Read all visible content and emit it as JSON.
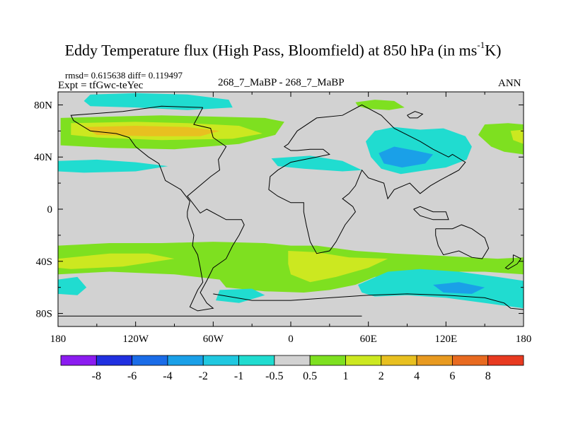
{
  "chart_data": {
    "type": "heatmap",
    "title_main": "Eddy Temperature flux (High Pass, Bloomfield) at 850 hPa (in ms",
    "title_sup": "-1",
    "title_end": "K)",
    "stats_line": "rmsd= 0.615638 diff= 0.119497",
    "expt_line": "Expt = tfGwc-teYec",
    "comparison": "268_7_MaBP - 268_7_MaBP",
    "season": "ANN",
    "x_domain": [
      -180,
      180
    ],
    "y_domain": [
      -90,
      90
    ],
    "x_ticks": [
      {
        "value": -180,
        "label": "180"
      },
      {
        "value": -120,
        "label": "120W"
      },
      {
        "value": -60,
        "label": "60W"
      },
      {
        "value": 0,
        "label": "0"
      },
      {
        "value": 60,
        "label": "60E"
      },
      {
        "value": 120,
        "label": "120E"
      },
      {
        "value": 180,
        "label": "180"
      }
    ],
    "y_ticks": [
      {
        "value": 80,
        "label": "80N"
      },
      {
        "value": 40,
        "label": "40N"
      },
      {
        "value": 0,
        "label": "0"
      },
      {
        "value": -40,
        "label": "40S"
      },
      {
        "value": -80,
        "label": "80S"
      }
    ],
    "colorbar": {
      "labels": [
        "-8",
        "-6",
        "-4",
        "-2",
        "-1",
        "-0.5",
        "0.5",
        "1",
        "2",
        "4",
        "6",
        "8"
      ],
      "colors": [
        "#8b1cf0",
        "#2030e0",
        "#1a6ce8",
        "#1aa0e8",
        "#20c8e0",
        "#20dcd0",
        "#d2d2d2",
        "#7ee020",
        "#cce820",
        "#e8c020",
        "#e89a20",
        "#e86a20",
        "#e83a20"
      ]
    },
    "regions": [
      {
        "level": "-1",
        "color": "#20dcd0",
        "points": [
          [
            -155,
            88
          ],
          [
            -120,
            89
          ],
          [
            -80,
            88
          ],
          [
            -48,
            84
          ],
          [
            -45,
            78
          ],
          [
            -80,
            76
          ],
          [
            -120,
            78
          ],
          [
            -155,
            79
          ],
          [
            -160,
            83
          ]
        ]
      },
      {
        "level": "1",
        "color": "#7ee020",
        "points": [
          [
            -178,
            70
          ],
          [
            -140,
            71
          ],
          [
            -100,
            72
          ],
          [
            -60,
            71
          ],
          [
            -20,
            70
          ],
          [
            -5,
            67
          ],
          [
            -12,
            57
          ],
          [
            -40,
            50
          ],
          [
            -90,
            46
          ],
          [
            -140,
            47
          ],
          [
            -178,
            49
          ]
        ]
      },
      {
        "level": "2",
        "color": "#cce820",
        "points": [
          [
            -170,
            66
          ],
          [
            -120,
            67
          ],
          [
            -80,
            66
          ],
          [
            -40,
            64
          ],
          [
            -22,
            58
          ],
          [
            -45,
            54
          ],
          [
            -100,
            53
          ],
          [
            -150,
            55
          ],
          [
            -170,
            57
          ]
        ]
      },
      {
        "level": "4",
        "color": "#e8c020",
        "points": [
          [
            -160,
            63
          ],
          [
            -120,
            64
          ],
          [
            -80,
            63
          ],
          [
            -55,
            60
          ],
          [
            -70,
            56
          ],
          [
            -110,
            56
          ],
          [
            -150,
            57
          ]
        ]
      },
      {
        "level": "-1",
        "color": "#20dcd0",
        "points": [
          [
            -180,
            37
          ],
          [
            -150,
            38
          ],
          [
            -120,
            36
          ],
          [
            -95,
            33
          ],
          [
            -120,
            29
          ],
          [
            -160,
            28
          ],
          [
            -180,
            29
          ]
        ]
      },
      {
        "level": "-1",
        "color": "#20dcd0",
        "points": [
          [
            -15,
            39
          ],
          [
            15,
            41
          ],
          [
            40,
            37
          ],
          [
            55,
            30
          ],
          [
            40,
            29
          ],
          [
            10,
            31
          ],
          [
            -10,
            33
          ]
        ]
      },
      {
        "level": "1",
        "color": "#7ee020",
        "points": [
          [
            50,
            82
          ],
          [
            65,
            84
          ],
          [
            80,
            83
          ],
          [
            88,
            78
          ],
          [
            76,
            76
          ],
          [
            60,
            77
          ],
          [
            52,
            79
          ]
        ]
      },
      {
        "level": "-1",
        "color": "#20dcd0",
        "points": [
          [
            65,
            60
          ],
          [
            80,
            63
          ],
          [
            100,
            61
          ],
          [
            118,
            62
          ],
          [
            135,
            56
          ],
          [
            140,
            48
          ],
          [
            136,
            38
          ],
          [
            120,
            32
          ],
          [
            105,
            30
          ],
          [
            85,
            27
          ],
          [
            70,
            31
          ],
          [
            62,
            40
          ],
          [
            58,
            52
          ]
        ]
      },
      {
        "level": "-2",
        "color": "#1aa0e8",
        "points": [
          [
            68,
            43
          ],
          [
            80,
            48
          ],
          [
            96,
            45
          ],
          [
            110,
            42
          ],
          [
            104,
            35
          ],
          [
            86,
            32
          ],
          [
            72,
            35
          ]
        ]
      },
      {
        "level": "1",
        "color": "#7ee020",
        "points": [
          [
            150,
            65
          ],
          [
            168,
            66
          ],
          [
            180,
            65
          ],
          [
            180,
            42
          ],
          [
            165,
            44
          ],
          [
            155,
            48
          ],
          [
            145,
            57
          ]
        ]
      },
      {
        "level": "2",
        "color": "#cce820",
        "points": [
          [
            170,
            60
          ],
          [
            180,
            61
          ],
          [
            180,
            50
          ],
          [
            172,
            53
          ]
        ]
      },
      {
        "level": "1",
        "color": "#7ee020",
        "points": [
          [
            -180,
            -28
          ],
          [
            -140,
            -26
          ],
          [
            -100,
            -26
          ],
          [
            -60,
            -25
          ],
          [
            -20,
            -26
          ],
          [
            0,
            -28
          ],
          [
            20,
            -28
          ],
          [
            50,
            -32
          ],
          [
            80,
            -34
          ],
          [
            120,
            -36
          ],
          [
            160,
            -38
          ],
          [
            180,
            -37
          ],
          [
            180,
            -50
          ],
          [
            150,
            -48
          ],
          [
            120,
            -48
          ],
          [
            90,
            -50
          ],
          [
            65,
            -52
          ],
          [
            50,
            -58
          ],
          [
            30,
            -62
          ],
          [
            10,
            -64
          ],
          [
            -20,
            -63
          ],
          [
            -50,
            -60
          ],
          [
            -55,
            -54
          ],
          [
            -90,
            -50
          ],
          [
            -140,
            -48
          ],
          [
            -180,
            -50
          ]
        ]
      },
      {
        "level": "2",
        "color": "#cce820",
        "points": [
          [
            -180,
            -38
          ],
          [
            -140,
            -34
          ],
          [
            -110,
            -34
          ],
          [
            -90,
            -38
          ],
          [
            -130,
            -44
          ],
          [
            -170,
            -46
          ],
          [
            -180,
            -45
          ]
        ]
      },
      {
        "level": "2",
        "color": "#cce820",
        "points": [
          [
            -2,
            -32
          ],
          [
            20,
            -33
          ],
          [
            45,
            -37
          ],
          [
            75,
            -38
          ],
          [
            60,
            -45
          ],
          [
            35,
            -52
          ],
          [
            15,
            -56
          ],
          [
            0,
            -50
          ],
          [
            -2,
            -42
          ]
        ]
      },
      {
        "level": "-1",
        "color": "#20dcd0",
        "points": [
          [
            -180,
            -54
          ],
          [
            -165,
            -52
          ],
          [
            -158,
            -60
          ],
          [
            -165,
            -66
          ],
          [
            -180,
            -65
          ]
        ]
      },
      {
        "level": "-1",
        "color": "#20dcd0",
        "points": [
          [
            -55,
            -62
          ],
          [
            -30,
            -61
          ],
          [
            -20,
            -66
          ],
          [
            -40,
            -72
          ],
          [
            -58,
            -70
          ]
        ]
      },
      {
        "level": "-1",
        "color": "#20dcd0",
        "points": [
          [
            52,
            -58
          ],
          [
            75,
            -48
          ],
          [
            100,
            -46
          ],
          [
            130,
            -48
          ],
          [
            160,
            -52
          ],
          [
            180,
            -55
          ],
          [
            180,
            -76
          ],
          [
            150,
            -72
          ],
          [
            120,
            -68
          ],
          [
            90,
            -66
          ],
          [
            65,
            -67
          ],
          [
            55,
            -64
          ]
        ]
      },
      {
        "level": "-2",
        "color": "#1aa0e8",
        "points": [
          [
            110,
            -58
          ],
          [
            130,
            -56
          ],
          [
            150,
            -60
          ],
          [
            140,
            -65
          ],
          [
            118,
            -64
          ]
        ]
      }
    ],
    "coastlines": [
      [
        [
          -68,
          78
        ],
        [
          -75,
          65
        ],
        [
          -62,
          62
        ],
        [
          -60,
          55
        ],
        [
          -50,
          48
        ],
        [
          -56,
          38
        ],
        [
          -55,
          30
        ],
        [
          -62,
          25
        ],
        [
          -80,
          10
        ],
        [
          -70,
          -3
        ],
        [
          -65,
          0
        ],
        [
          -50,
          -8
        ],
        [
          -38,
          -8
        ],
        [
          -36,
          -12
        ],
        [
          -40,
          -20
        ],
        [
          -45,
          -28
        ],
        [
          -50,
          -38
        ],
        [
          -60,
          -45
        ],
        [
          -65,
          -55
        ],
        [
          -70,
          -64
        ],
        [
          -65,
          -72
        ],
        [
          -60,
          -76
        ],
        [
          -72,
          -78
        ],
        [
          -78,
          -75
        ],
        [
          -72,
          -62
        ],
        [
          -68,
          -56
        ],
        [
          -70,
          -45
        ],
        [
          -72,
          -35
        ],
        [
          -76,
          -28
        ],
        [
          -75,
          -20
        ],
        [
          -80,
          -6
        ],
        [
          -80,
          -2
        ],
        [
          -78,
          6
        ],
        [
          -85,
          15
        ],
        [
          -97,
          22
        ],
        [
          -100,
          30
        ],
        [
          -102,
          35
        ],
        [
          -110,
          40
        ],
        [
          -120,
          48
        ],
        [
          -125,
          55
        ],
        [
          -135,
          58
        ],
        [
          -155,
          60
        ],
        [
          -168,
          68
        ],
        [
          -170,
          72
        ],
        [
          -130,
          75
        ],
        [
          -100,
          79
        ],
        [
          -68,
          78
        ]
      ],
      [
        [
          -2,
          50
        ],
        [
          5,
          60
        ],
        [
          20,
          70
        ],
        [
          40,
          72
        ],
        [
          55,
          80
        ],
        [
          70,
          72
        ],
        [
          80,
          62
        ],
        [
          100,
          52
        ],
        [
          110,
          46
        ],
        [
          122,
          40
        ],
        [
          125,
          42
        ],
        [
          135,
          36
        ],
        [
          130,
          30
        ],
        [
          115,
          22
        ],
        [
          108,
          18
        ],
        [
          100,
          12
        ],
        [
          92,
          20
        ],
        [
          80,
          15
        ],
        [
          75,
          8
        ],
        [
          72,
          20
        ],
        [
          60,
          24
        ],
        [
          55,
          30
        ],
        [
          50,
          18
        ],
        [
          45,
          12
        ],
        [
          40,
          8
        ],
        [
          48,
          2
        ],
        [
          50,
          -2
        ],
        [
          42,
          -12
        ],
        [
          35,
          -25
        ],
        [
          30,
          -32
        ],
        [
          20,
          -34
        ],
        [
          15,
          -25
        ],
        [
          12,
          -12
        ],
        [
          10,
          -2
        ],
        [
          10,
          5
        ],
        [
          0,
          5
        ],
        [
          -10,
          10
        ],
        [
          -17,
          15
        ],
        [
          -16,
          25
        ],
        [
          -10,
          30
        ],
        [
          0,
          36
        ],
        [
          10,
          38
        ],
        [
          20,
          40
        ],
        [
          30,
          42
        ],
        [
          25,
          46
        ],
        [
          15,
          46
        ],
        [
          5,
          45
        ],
        [
          0,
          45
        ],
        [
          -5,
          48
        ],
        [
          -2,
          50
        ]
      ],
      [
        [
          90,
          72
        ],
        [
          96,
          75
        ],
        [
          102,
          73
        ],
        [
          98,
          70
        ],
        [
          92,
          70
        ],
        [
          90,
          72
        ]
      ],
      [
        [
          95,
          0
        ],
        [
          100,
          2
        ],
        [
          110,
          -2
        ],
        [
          120,
          -2
        ],
        [
          122,
          -8
        ],
        [
          110,
          -8
        ],
        [
          100,
          -5
        ],
        [
          95,
          0
        ]
      ],
      [
        [
          112,
          -15
        ],
        [
          125,
          -15
        ],
        [
          132,
          -12
        ],
        [
          140,
          -15
        ],
        [
          150,
          -22
        ],
        [
          153,
          -30
        ],
        [
          148,
          -38
        ],
        [
          140,
          -37
        ],
        [
          130,
          -32
        ],
        [
          118,
          -35
        ],
        [
          114,
          -28
        ],
        [
          112,
          -20
        ],
        [
          112,
          -15
        ]
      ],
      [
        [
          172,
          -35
        ],
        [
          178,
          -38
        ],
        [
          175,
          -42
        ],
        [
          168,
          -46
        ],
        [
          166,
          -45
        ],
        [
          172,
          -40
        ],
        [
          172,
          -35
        ]
      ],
      [
        [
          -60,
          -65
        ],
        [
          -30,
          -70
        ],
        [
          0,
          -70
        ],
        [
          30,
          -68
        ],
        [
          60,
          -66
        ],
        [
          90,
          -65
        ],
        [
          120,
          -66
        ],
        [
          150,
          -68
        ],
        [
          165,
          -72
        ],
        [
          170,
          -76
        ],
        [
          180,
          -77
        ]
      ],
      [
        [
          -180,
          -82
        ],
        [
          -120,
          -82
        ],
        [
          -60,
          -82
        ],
        [
          0,
          -82
        ],
        [
          55,
          -82
        ]
      ]
    ]
  }
}
